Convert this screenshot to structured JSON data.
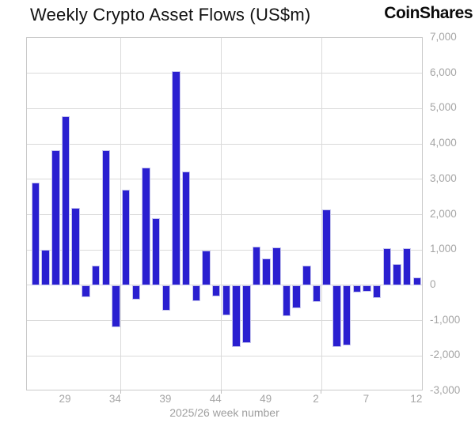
{
  "header": {
    "title": "Weekly Crypto Asset Flows (US$m)",
    "logo": "CoinShares"
  },
  "chart_data": {
    "type": "bar",
    "title": "Weekly Crypto Asset Flows (US$m)",
    "xlabel": "2025/26 week number",
    "ylabel": "",
    "ylim": [
      -3000,
      7000
    ],
    "ytick_interval": 1000,
    "ytick_labels": [
      "7,000",
      "6,000",
      "5,000",
      "4,000",
      "3,000",
      "2,000",
      "1,000",
      "0",
      "-1,000",
      "-2,000",
      "-3,000"
    ],
    "x_weeks": [
      26,
      27,
      28,
      29,
      30,
      31,
      32,
      33,
      34,
      35,
      36,
      37,
      38,
      39,
      40,
      41,
      42,
      43,
      44,
      45,
      46,
      47,
      48,
      49,
      50,
      51,
      52,
      1,
      2,
      3,
      4,
      5,
      6,
      7,
      8,
      9,
      10,
      11,
      12
    ],
    "xtick_weeks": [
      29,
      34,
      39,
      44,
      49,
      2,
      7,
      12
    ],
    "values": [
      2900,
      1000,
      3820,
      4790,
      2190,
      -340,
      560,
      3820,
      -1190,
      2710,
      -400,
      3320,
      1900,
      -720,
      6050,
      3230,
      -450,
      990,
      -310,
      -850,
      -1740,
      -1630,
      1100,
      760,
      1080,
      -880,
      -650,
      560,
      -470,
      2150,
      -1750,
      -1700,
      -210,
      -190,
      -360,
      1050,
      600,
      1050,
      225
    ],
    "vertical_gridlines_after_weeks": [
      34,
      44,
      2
    ],
    "grid_on": true,
    "legend_position": "none",
    "bar_color": "#2a1fd0",
    "bar_edge_color": "#c6c5ee",
    "grid_color": "#dadada",
    "axis_color": "#c9c9c9",
    "tick_label_color": "#a5a5a5",
    "title_color": "#111111"
  }
}
